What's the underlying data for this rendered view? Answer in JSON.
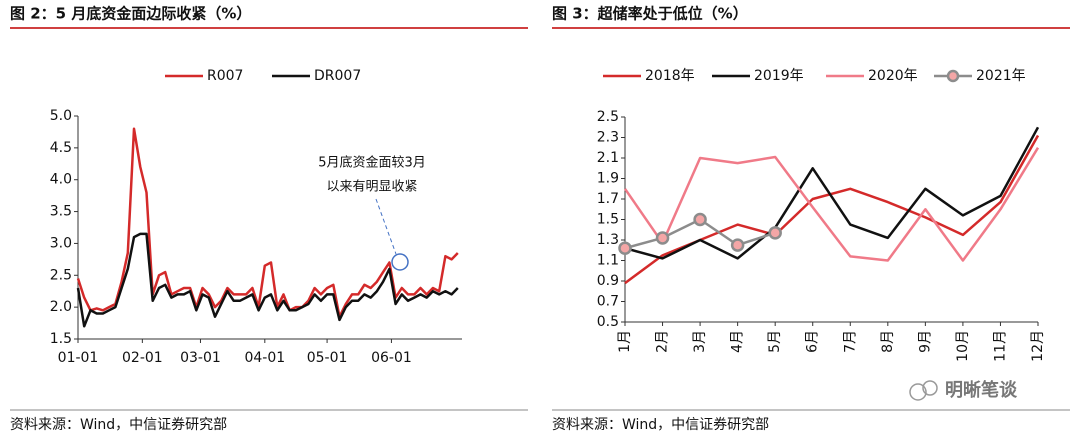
{
  "chart_data": [
    {
      "type": "line",
      "title": "图 2：5 月底资金面边际收紧（%）",
      "source": "资料来源：Wind，中信证券研究部",
      "annotation": [
        "5月底资金面较3月",
        "以来有明显收紧"
      ],
      "x": [
        0,
        3,
        6,
        9,
        12,
        15,
        18,
        21,
        24,
        27,
        30,
        33,
        36,
        39,
        42,
        45,
        48,
        51,
        54,
        57,
        60,
        63,
        66,
        69,
        72,
        75,
        78,
        81,
        84,
        87,
        90,
        93,
        96,
        99,
        102,
        105,
        108,
        111,
        114,
        117,
        120,
        123,
        126,
        129,
        132,
        135,
        138,
        141,
        144,
        147,
        150,
        153,
        156,
        159,
        162,
        165,
        168,
        171,
        174,
        177,
        180,
        183
      ],
      "xlim": [
        0,
        185
      ],
      "xticks": [
        {
          "value": 0,
          "label": "01-01"
        },
        {
          "value": 31,
          "label": "02-01"
        },
        {
          "value": 59,
          "label": "03-01"
        },
        {
          "value": 90,
          "label": "04-01"
        },
        {
          "value": 120,
          "label": "05-01"
        },
        {
          "value": 151,
          "label": "06-01"
        }
      ],
      "ylim": [
        1.5,
        5.0
      ],
      "yticks": [
        1.5,
        {
          "value": 2,
          "label": "2.0"
        },
        2.5,
        {
          "value": 3,
          "label": "3.0"
        },
        3.5,
        {
          "value": 4,
          "label": "4.0"
        },
        4.5,
        {
          "value": 5,
          "label": "5.0"
        }
      ],
      "series": [
        {
          "name": "R007",
          "color": "#d42a2a",
          "values": [
            2.45,
            2.15,
            1.95,
            1.98,
            1.95,
            2.0,
            2.05,
            2.4,
            2.85,
            4.8,
            4.2,
            3.8,
            2.2,
            2.5,
            2.55,
            2.2,
            2.25,
            2.3,
            2.3,
            2.0,
            2.3,
            2.2,
            2.0,
            2.1,
            2.3,
            2.2,
            2.2,
            2.2,
            2.3,
            2.0,
            2.65,
            2.7,
            2.0,
            2.2,
            1.95,
            2.0,
            2.0,
            2.1,
            2.3,
            2.2,
            2.3,
            2.35,
            1.85,
            2.05,
            2.2,
            2.2,
            2.35,
            2.3,
            2.4,
            2.55,
            2.7,
            2.15,
            2.3,
            2.2,
            2.2,
            2.3,
            2.2,
            2.3,
            2.25,
            2.8,
            2.75,
            2.85
          ]
        },
        {
          "name": "DR007",
          "color": "#111111",
          "values": [
            2.3,
            1.7,
            1.95,
            1.9,
            1.9,
            1.95,
            2.0,
            2.3,
            2.6,
            3.1,
            3.15,
            3.15,
            2.1,
            2.3,
            2.35,
            2.15,
            2.2,
            2.2,
            2.25,
            1.95,
            2.2,
            2.15,
            1.85,
            2.05,
            2.25,
            2.1,
            2.1,
            2.15,
            2.2,
            1.95,
            2.15,
            2.2,
            1.95,
            2.1,
            1.95,
            1.95,
            2.0,
            2.05,
            2.2,
            2.1,
            2.2,
            2.2,
            1.8,
            2.0,
            2.1,
            2.1,
            2.2,
            2.15,
            2.25,
            2.4,
            2.6,
            2.05,
            2.2,
            2.1,
            2.15,
            2.2,
            2.15,
            2.25,
            2.2,
            2.25,
            2.2,
            2.3
          ]
        }
      ]
    },
    {
      "type": "line",
      "title": "图 3：超储率处于低位（%）",
      "source": "资料来源：Wind，中信证券研究部",
      "watermark": "明晰笔谈",
      "categories": [
        "1月",
        "2月",
        "3月",
        "4月",
        "5月",
        "6月",
        "7月",
        "8月",
        "9月",
        "10月",
        "11月",
        "12月"
      ],
      "ylim": [
        0.5,
        2.5
      ],
      "yticks": [
        0.5,
        0.7,
        0.9,
        1.1,
        1.3,
        1.5,
        1.7,
        1.9,
        2.1,
        2.3,
        2.5
      ],
      "series": [
        {
          "name": "2018年",
          "color": "#d42a2a",
          "values": [
            0.88,
            1.15,
            1.3,
            1.45,
            1.35,
            1.7,
            1.8,
            1.67,
            1.52,
            1.35,
            1.67,
            2.32
          ]
        },
        {
          "name": "2019年",
          "color": "#111111",
          "values": [
            1.22,
            1.12,
            1.3,
            1.12,
            1.42,
            2.0,
            1.45,
            1.32,
            1.8,
            1.54,
            1.73,
            2.4
          ]
        },
        {
          "name": "2020年",
          "color": "#f07a88",
          "values": [
            1.8,
            1.27,
            2.1,
            2.05,
            2.11,
            1.62,
            1.14,
            1.1,
            1.6,
            1.1,
            1.6,
            2.2
          ]
        },
        {
          "name": "2021年",
          "color": "#8c8c8c",
          "marker_color": "#f4a6a6",
          "values": [
            1.22,
            1.32,
            1.5,
            1.25,
            1.37,
            null,
            null,
            null,
            null,
            null,
            null,
            null
          ]
        }
      ]
    }
  ]
}
